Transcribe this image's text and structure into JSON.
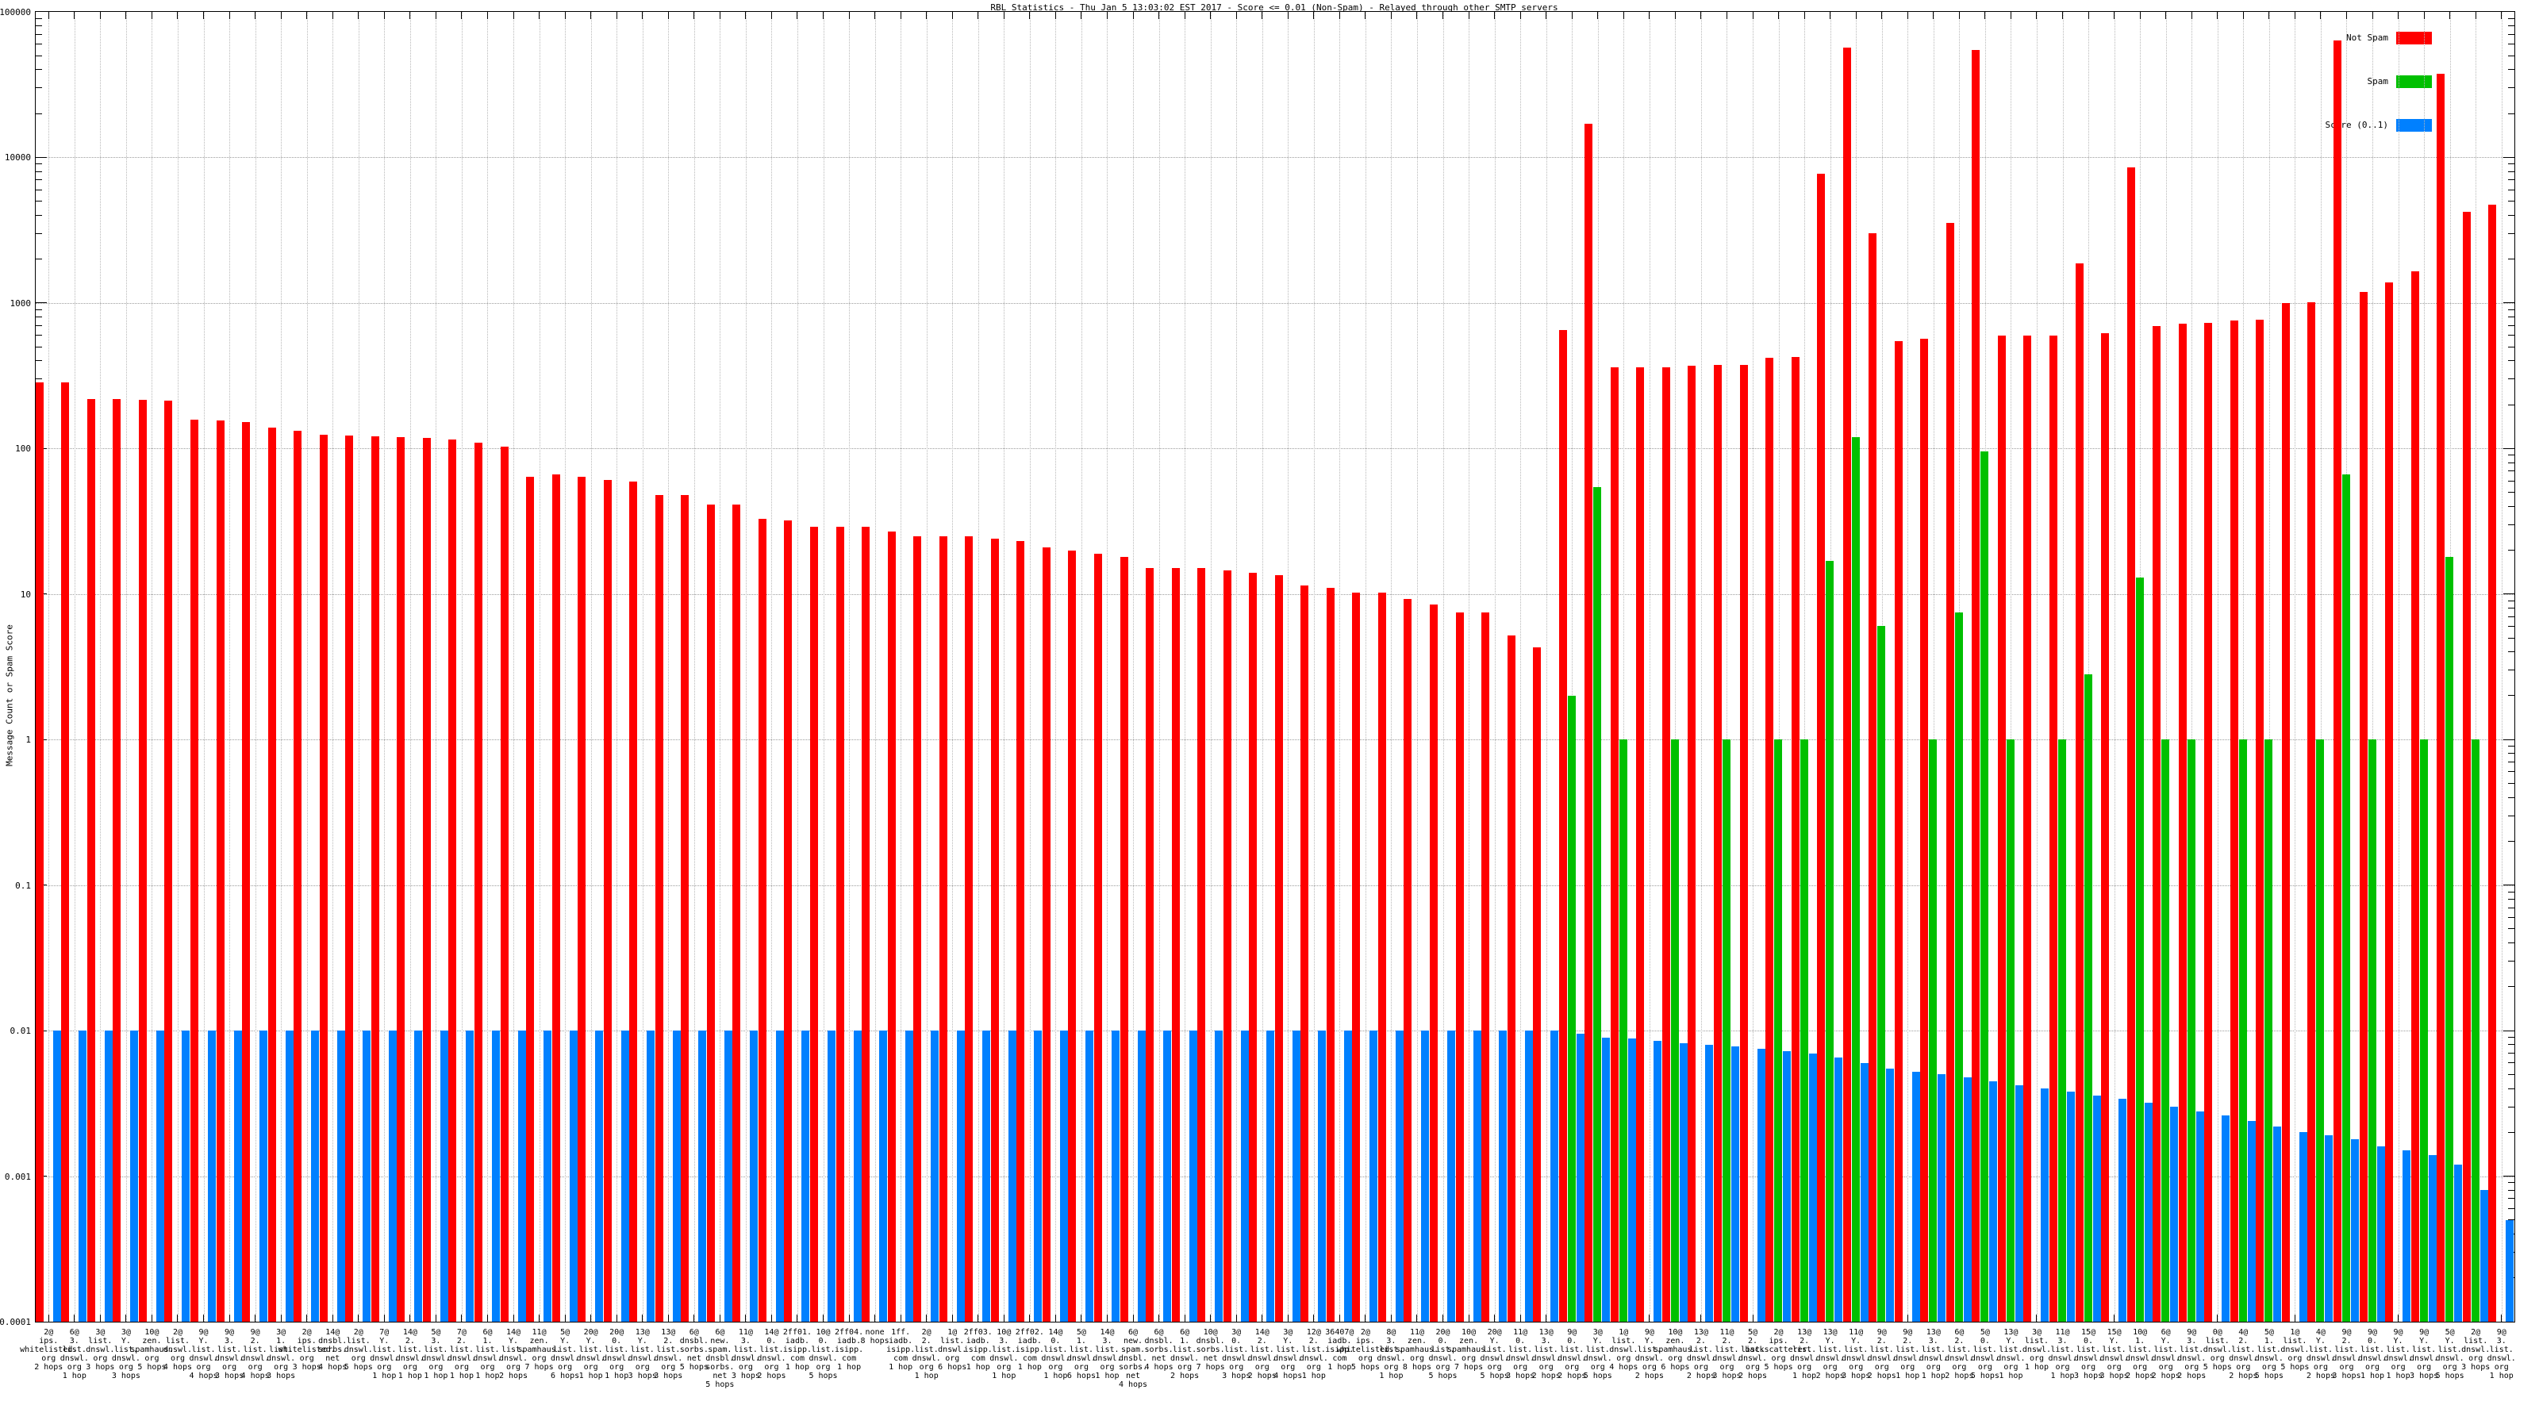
{
  "header": {
    "title": "RBL Statistics - Thu Jan  5 13:03:02 EST 2017 - Score <= 0.01 (Non-Spam) - Relayed through other SMTP servers"
  },
  "chart_data": {
    "type": "bar",
    "title": "RBL Statistics - Thu Jan  5 13:03:02 EST 2017 - Score <= 0.01 (Non-Spam) - Relayed through other SMTP servers",
    "ylabel": "Message Count or Spam Score",
    "xlabel": "",
    "scale": "log",
    "ylim": [
      0.0001,
      100000
    ],
    "grid": true,
    "legend_position": "top-right",
    "yticks": [
      "100000",
      "10000",
      "1000",
      "100",
      "10",
      "1",
      "0.1",
      "0.01",
      "0.001",
      "0.0001"
    ],
    "categories": [
      [
        "2@",
        "ips.",
        "whitelisted.",
        "org",
        "2 hops"
      ],
      [
        "6@",
        "3.",
        "list.",
        "dnswl.",
        "org",
        "1 hop"
      ],
      [
        "3@",
        "list.",
        "dnswl.",
        "org",
        "3 hops"
      ],
      [
        "3@",
        "Y.",
        "list.",
        "dnswl.",
        "org",
        "3 hops"
      ],
      [
        "10@",
        "zen.",
        "spamhaus.",
        "org",
        "5 hops"
      ],
      [
        "2@",
        "list.",
        "dnswl.",
        "org",
        "4 hops"
      ],
      [
        "9@",
        "Y.",
        "list.",
        "dnswl.",
        "org",
        "4 hops"
      ],
      [
        "9@",
        "3.",
        "list.",
        "dnswl.",
        "org",
        "3 hops"
      ],
      [
        "9@",
        "2.",
        "list.",
        "dnswl.",
        "org",
        "4 hops"
      ],
      [
        "3@",
        "1.",
        "list.",
        "dnswl.",
        "org",
        "3 hops"
      ],
      [
        "2@",
        "ips.",
        "whitelisted.",
        "org",
        "3 hops"
      ],
      [
        "14@",
        "dnsbl.",
        "sorbs.",
        "net",
        "4 hops"
      ],
      [
        "2@",
        "list.",
        "dnswl.",
        "org",
        "5 hops"
      ],
      [
        "7@",
        "Y.",
        "list.",
        "dnswl.",
        "org",
        "1 hop"
      ],
      [
        "14@",
        "2.",
        "list.",
        "dnswl.",
        "org",
        "1 hop"
      ],
      [
        "5@",
        "3.",
        "list.",
        "dnswl.",
        "org",
        "1 hop"
      ],
      [
        "7@",
        "2.",
        "list.",
        "dnswl.",
        "org",
        "1 hop"
      ],
      [
        "6@",
        "1.",
        "list.",
        "dnswl.",
        "org",
        "1 hop"
      ],
      [
        "14@",
        "Y.",
        "list.",
        "dnswl.",
        "org",
        "2 hops"
      ],
      [
        "11@",
        "zen.",
        "spamhaus.",
        "org",
        "7 hops"
      ],
      [
        "5@",
        "Y.",
        "list.",
        "dnswl.",
        "org",
        "6 hops"
      ],
      [
        "20@",
        "Y.",
        "list.",
        "dnswl.",
        "org",
        "1 hop"
      ],
      [
        "20@",
        "0.",
        "list.",
        "dnswl.",
        "org",
        "1 hop"
      ],
      [
        "13@",
        "Y.",
        "list.",
        "dnswl.",
        "org",
        "3 hops"
      ],
      [
        "13@",
        "2.",
        "list.",
        "dnswl.",
        "org",
        "3 hops"
      ],
      [
        "6@",
        "dnsbl.",
        "sorbs.",
        "net",
        "5 hops"
      ],
      [
        "6@",
        "new.",
        "spam.",
        "dnsbl.",
        "sorbs.",
        "net",
        "5 hops"
      ],
      [
        "11@",
        "3.",
        "list.",
        "dnswl.",
        "org",
        "3 hops"
      ],
      [
        "14@",
        "0.",
        "list.",
        "dnswl.",
        "org",
        "2 hops"
      ],
      [
        "2ff01.",
        "iadb.",
        "isipp.",
        "com",
        "1 hop"
      ],
      [
        "10@",
        "0.",
        "list.",
        "dnswl.",
        "org",
        "5 hops"
      ],
      [
        "2ff04.",
        "iadb.",
        "isipp.",
        "com",
        "1 hop"
      ],
      [
        "none",
        "8 hops"
      ],
      [
        "1ff.",
        "iadb.",
        "isipp.",
        "com",
        "1 hop"
      ],
      [
        "2@",
        "2.",
        "list.",
        "dnswl.",
        "org",
        "1 hop"
      ],
      [
        "1@",
        "list.",
        "dnswl.",
        "org",
        "6 hops"
      ],
      [
        "2ff03.",
        "iadb.",
        "isipp.",
        "com",
        "1 hop"
      ],
      [
        "10@",
        "3.",
        "list.",
        "dnswl.",
        "org",
        "1 hop"
      ],
      [
        "2ff02.",
        "iadb.",
        "isipp.",
        "com",
        "1 hop"
      ],
      [
        "14@",
        "0.",
        "list.",
        "dnswl.",
        "org",
        "1 hop"
      ],
      [
        "5@",
        "1.",
        "list.",
        "dnswl.",
        "org",
        "6 hops"
      ],
      [
        "14@",
        "3.",
        "list.",
        "dnswl.",
        "org",
        "1 hop"
      ],
      [
        "6@",
        "new.",
        "spam.",
        "dnsbl.",
        "sorbs.",
        "net",
        "4 hops"
      ],
      [
        "6@",
        "dnsbl.",
        "sorbs.",
        "net",
        "4 hops"
      ],
      [
        "6@",
        "1.",
        "list.",
        "dnswl.",
        "org",
        "2 hops"
      ],
      [
        "10@",
        "dnsbl.",
        "sorbs.",
        "net",
        "7 hops"
      ],
      [
        "3@",
        "0.",
        "list.",
        "dnswl.",
        "org",
        "3 hops"
      ],
      [
        "14@",
        "2.",
        "list.",
        "dnswl.",
        "org",
        "2 hops"
      ],
      [
        "3@",
        "Y.",
        "list.",
        "dnswl.",
        "org",
        "4 hops"
      ],
      [
        "12@",
        "2.",
        "list.",
        "dnswl.",
        "org",
        "1 hop"
      ],
      [
        "36407@",
        "iadb.",
        "isipp.",
        "com",
        "1 hop"
      ],
      [
        "2@",
        "ips.",
        "whitelisted.",
        "org",
        "5 hops"
      ],
      [
        "8@",
        "3.",
        "list.",
        "dnswl.",
        "org",
        "1 hop"
      ],
      [
        "11@",
        "zen.",
        "spamhaus.",
        "org",
        "8 hops"
      ],
      [
        "20@",
        "0.",
        "list.",
        "dnswl.",
        "org",
        "5 hops"
      ],
      [
        "10@",
        "zen.",
        "spamhaus.",
        "org",
        "7 hops"
      ],
      [
        "20@",
        "Y.",
        "list.",
        "dnswl.",
        "org",
        "5 hops"
      ],
      [
        "11@",
        "0.",
        "list.",
        "dnswl.",
        "org",
        "3 hops"
      ],
      [
        "13@",
        "3.",
        "list.",
        "dnswl.",
        "org",
        "2 hops"
      ],
      [
        "9@",
        "0.",
        "list.",
        "dnswl.",
        "org",
        "2 hops"
      ],
      [
        "3@",
        "Y.",
        "list.",
        "dnswl.",
        "org",
        "5 hops"
      ],
      [
        "1@",
        "list.",
        "dnswl.",
        "org",
        "4 hops"
      ],
      [
        "9@",
        "Y.",
        "list.",
        "dnswl.",
        "org",
        "2 hops"
      ],
      [
        "10@",
        "zen.",
        "spamhaus.",
        "org",
        "6 hops"
      ],
      [
        "13@",
        "2.",
        "list.",
        "dnswl.",
        "org",
        "2 hops"
      ],
      [
        "11@",
        "2.",
        "list.",
        "dnswl.",
        "org",
        "3 hops"
      ],
      [
        "5@",
        "2.",
        "list.",
        "dnswl.",
        "org",
        "2 hops"
      ],
      [
        "2@",
        "ips.",
        "backscatterer.",
        "org",
        "5 hops"
      ],
      [
        "13@",
        "2.",
        "list.",
        "dnswl.",
        "org",
        "1 hop"
      ],
      [
        "13@",
        "Y.",
        "list.",
        "dnswl.",
        "org",
        "2 hops"
      ],
      [
        "11@",
        "Y.",
        "list.",
        "dnswl.",
        "org",
        "3 hops"
      ],
      [
        "9@",
        "2.",
        "list.",
        "dnswl.",
        "org",
        "2 hops"
      ],
      [
        "9@",
        "2.",
        "list.",
        "dnswl.",
        "org",
        "1 hop"
      ],
      [
        "13@",
        "3.",
        "list.",
        "dnswl.",
        "org",
        "1 hop"
      ],
      [
        "6@",
        "2.",
        "list.",
        "dnswl.",
        "org",
        "2 hops"
      ],
      [
        "5@",
        "0.",
        "list.",
        "dnswl.",
        "org",
        "5 hops"
      ],
      [
        "13@",
        "Y.",
        "list.",
        "dnswl.",
        "org",
        "1 hop"
      ],
      [
        "3@",
        "list.",
        "dnswl.",
        "org",
        "1 hop"
      ],
      [
        "11@",
        "3.",
        "list.",
        "dnswl.",
        "org",
        "1 hop"
      ],
      [
        "15@",
        "0.",
        "list.",
        "dnswl.",
        "org",
        "3 hops"
      ],
      [
        "15@",
        "Y.",
        "list.",
        "dnswl.",
        "org",
        "3 hops"
      ],
      [
        "10@",
        "1.",
        "list.",
        "dnswl.",
        "org",
        "2 hops"
      ],
      [
        "6@",
        "Y.",
        "list.",
        "dnswl.",
        "org",
        "2 hops"
      ],
      [
        "9@",
        "3.",
        "list.",
        "dnswl.",
        "org",
        "2 hops"
      ],
      [
        "0@",
        "list.",
        "dnswl.",
        "org",
        "5 hops"
      ],
      [
        "4@",
        "2.",
        "list.",
        "dnswl.",
        "org",
        "2 hops"
      ],
      [
        "5@",
        "1.",
        "list.",
        "dnswl.",
        "org",
        "5 hops"
      ],
      [
        "1@",
        "list.",
        "dnswl.",
        "org",
        "5 hops"
      ],
      [
        "4@",
        "Y.",
        "list.",
        "dnswl.",
        "org",
        "2 hops"
      ],
      [
        "9@",
        "2.",
        "list.",
        "dnswl.",
        "org",
        "3 hops"
      ],
      [
        "9@",
        "0.",
        "list.",
        "dnswl.",
        "org",
        "1 hop"
      ],
      [
        "9@",
        "Y.",
        "list.",
        "dnswl.",
        "org",
        "1 hop"
      ],
      [
        "9@",
        "Y.",
        "list.",
        "dnswl.",
        "org",
        "3 hops"
      ],
      [
        "5@",
        "Y.",
        "list.",
        "dnswl.",
        "org",
        "5 hops"
      ],
      [
        "2@",
        "list.",
        "dnswl.",
        "org",
        "3 hops"
      ],
      [
        "9@",
        "3.",
        "list.",
        "dnswl.",
        "org",
        "1 hop"
      ]
    ],
    "series": [
      {
        "name": "Not Spam",
        "color": "#ff0000",
        "values": [
          285,
          285,
          218,
          220,
          215,
          213,
          157,
          155,
          152,
          139,
          133,
          125,
          123,
          121,
          119,
          118,
          115,
          110,
          103,
          64,
          66,
          64,
          61,
          59,
          48,
          48,
          41,
          41,
          33,
          32,
          29,
          29,
          29,
          27,
          25,
          25,
          25,
          24,
          23,
          21,
          20,
          19,
          18,
          15,
          15,
          15,
          14.5,
          14,
          13.5,
          11.5,
          11,
          10.2,
          10.2,
          9.3,
          8.5,
          7.5,
          7.5,
          5.2,
          4.3,
          650,
          17000,
          360,
          360,
          360,
          370,
          375,
          373,
          420,
          425,
          7700,
          57000,
          3000,
          550,
          570,
          3560,
          55000,
          600,
          600,
          600,
          1870,
          620,
          8500,
          690,
          720,
          730,
          760,
          770,
          1000,
          1010,
          64000,
          1190,
          1390,
          1660,
          37500,
          4230,
          4750
        ]
      },
      {
        "name": "Spam",
        "color": "#00c000",
        "values": [
          0,
          0,
          0,
          0,
          0,
          0,
          0,
          0,
          0,
          0,
          0,
          0,
          0,
          0,
          0,
          0,
          0,
          0,
          0,
          0,
          0,
          0,
          0,
          0,
          0,
          0,
          0,
          0,
          0,
          0,
          0,
          0,
          0,
          0,
          0,
          0,
          0,
          0,
          0,
          0,
          0,
          0,
          0,
          0,
          0,
          0,
          0,
          0,
          0,
          0,
          0,
          0,
          0,
          0,
          0,
          0,
          0,
          0,
          0,
          2,
          54,
          1,
          0,
          1,
          0,
          1,
          0,
          1,
          1,
          17,
          120,
          6,
          0,
          1,
          7.5,
          95,
          1,
          0,
          1,
          2.8,
          0,
          13,
          1,
          1,
          0,
          1,
          1,
          0,
          1,
          66,
          1,
          0,
          1,
          18,
          1,
          0
        ]
      },
      {
        "name": "Score (0..1)",
        "color": "#0080ff",
        "values": [
          0.01,
          0.01,
          0.01,
          0.01,
          0.01,
          0.01,
          0.01,
          0.01,
          0.01,
          0.01,
          0.01,
          0.01,
          0.01,
          0.01,
          0.01,
          0.01,
          0.01,
          0.01,
          0.01,
          0.01,
          0.01,
          0.01,
          0.01,
          0.01,
          0.01,
          0.01,
          0.01,
          0.01,
          0.01,
          0.01,
          0.01,
          0.01,
          0.01,
          0.01,
          0.01,
          0.01,
          0.01,
          0.01,
          0.01,
          0.01,
          0.01,
          0.01,
          0.01,
          0.01,
          0.01,
          0.01,
          0.01,
          0.01,
          0.01,
          0.01,
          0.01,
          0.01,
          0.01,
          0.01,
          0.01,
          0.01,
          0.01,
          0.01,
          0.01,
          0.0095,
          0.009,
          0.0088,
          0.0085,
          0.0082,
          0.008,
          0.0078,
          0.0075,
          0.0072,
          0.007,
          0.0065,
          0.006,
          0.0055,
          0.0052,
          0.005,
          0.0048,
          0.0045,
          0.0042,
          0.004,
          0.0038,
          0.0036,
          0.0034,
          0.0032,
          0.003,
          0.0028,
          0.0026,
          0.0024,
          0.0022,
          0.002,
          0.0019,
          0.0018,
          0.0016,
          0.0015,
          0.0014,
          0.0012,
          0.0008,
          0.0005
        ]
      }
    ]
  },
  "colors": {
    "not_spam": "#ff0000",
    "spam": "#00c000",
    "score": "#0080ff",
    "grid": "#9c9c9c",
    "axis": "#000000"
  }
}
